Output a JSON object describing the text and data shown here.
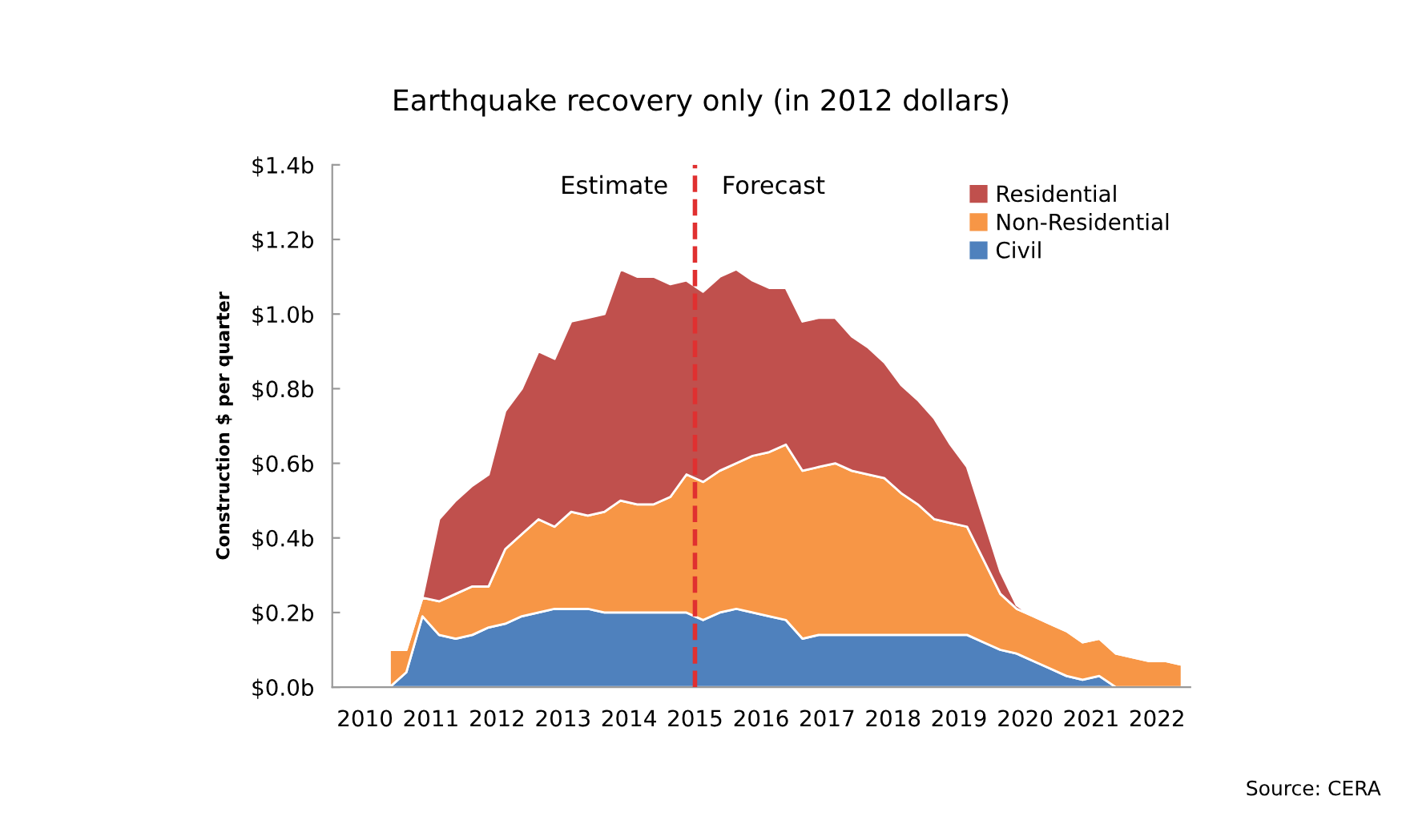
{
  "chart_data": {
    "type": "area",
    "stacked": true,
    "title": "Earthquake recovery only (in 2012 dollars)",
    "ylabel": "Construction $ per quarter",
    "x": [
      "2010-11-15",
      "2011-02-15",
      "2011-05-15",
      "2011-08-15",
      "2011-11-15",
      "2012-02-15",
      "2012-05-15",
      "2012-08-15",
      "2012-11-15",
      "2013-02-15",
      "2013-05-15",
      "2013-08-15",
      "2013-11-15",
      "2014-02-15",
      "2014-05-15",
      "2014-08-15",
      "2014-11-15",
      "2015-02-15",
      "2015-05-15",
      "2015-08-15",
      "2015-11-15",
      "2016-02-15",
      "2016-05-15",
      "2016-08-15",
      "2016-11-15",
      "2017-02-15",
      "2017-05-15",
      "2017-08-15",
      "2017-11-15",
      "2018-02-15",
      "2018-05-15",
      "2018-08-15",
      "2018-11-15",
      "2019-02-15",
      "2019-05-15",
      "2019-08-15",
      "2019-11-15",
      "2020-02-15",
      "2020-05-15",
      "2020-08-15",
      "2020-11-15",
      "2021-02-15",
      "2021-05-15",
      "2021-08-15",
      "2021-11-15",
      "2022-02-15",
      "2022-05-15",
      "2022-08-15",
      "2022-11-15"
    ],
    "series": [
      {
        "name": "Civil",
        "color": "#4f81bd",
        "values": [
          0,
          0.04,
          0.19,
          0.14,
          0.13,
          0.14,
          0.16,
          0.17,
          0.19,
          0.2,
          0.21,
          0.21,
          0.21,
          0.2,
          0.2,
          0.2,
          0.2,
          0.2,
          0.2,
          0.18,
          0.2,
          0.21,
          0.2,
          0.19,
          0.18,
          0.13,
          0.14,
          0.14,
          0.14,
          0.14,
          0.14,
          0.14,
          0.14,
          0.14,
          0.14,
          0.14,
          0.12,
          0.1,
          0.09,
          0.07,
          0.05,
          0.03,
          0.02,
          0.03,
          0,
          0,
          0,
          0,
          0
        ]
      },
      {
        "name": "Non-Residential",
        "color": "#f79646",
        "values": [
          0.1,
          0.06,
          0.05,
          0.09,
          0.12,
          0.13,
          0.11,
          0.2,
          0.22,
          0.25,
          0.22,
          0.26,
          0.25,
          0.27,
          0.3,
          0.29,
          0.29,
          0.31,
          0.37,
          0.37,
          0.38,
          0.39,
          0.42,
          0.44,
          0.47,
          0.45,
          0.45,
          0.46,
          0.44,
          0.43,
          0.42,
          0.38,
          0.35,
          0.31,
          0.3,
          0.29,
          0.22,
          0.15,
          0.12,
          0.12,
          0.12,
          0.12,
          0.1,
          0.1,
          0.09,
          0.08,
          0.07,
          0.07,
          0.06
        ]
      },
      {
        "name": "Residential",
        "color": "#c0504d",
        "values": [
          0,
          0,
          0,
          0.22,
          0.25,
          0.27,
          0.3,
          0.37,
          0.39,
          0.45,
          0.45,
          0.51,
          0.53,
          0.53,
          0.62,
          0.61,
          0.61,
          0.57,
          0.52,
          0.51,
          0.52,
          0.52,
          0.47,
          0.44,
          0.42,
          0.4,
          0.4,
          0.39,
          0.36,
          0.34,
          0.31,
          0.29,
          0.28,
          0.27,
          0.21,
          0.16,
          0.11,
          0.06,
          0.01,
          0,
          0,
          0,
          0,
          0,
          0,
          0,
          0,
          0,
          0
        ]
      }
    ],
    "xlim": [
      "2010-01-01",
      "2023-01-01"
    ],
    "xticks": [
      {
        "value": "2010-07-01",
        "label": "2010"
      },
      {
        "value": "2011-07-01",
        "label": "2011"
      },
      {
        "value": "2012-07-01",
        "label": "2012"
      },
      {
        "value": "2013-07-01",
        "label": "2013"
      },
      {
        "value": "2014-07-01",
        "label": "2014"
      },
      {
        "value": "2015-07-01",
        "label": "2015"
      },
      {
        "value": "2016-07-01",
        "label": "2016"
      },
      {
        "value": "2017-07-01",
        "label": "2017"
      },
      {
        "value": "2018-07-01",
        "label": "2018"
      },
      {
        "value": "2019-07-01",
        "label": "2019"
      },
      {
        "value": "2020-07-01",
        "label": "2020"
      },
      {
        "value": "2021-07-01",
        "label": "2021"
      },
      {
        "value": "2022-07-01",
        "label": "2022"
      }
    ],
    "ylim": [
      0,
      1.4
    ],
    "yticks": [
      {
        "value": 0,
        "label": "$0.0b"
      },
      {
        "value": 0.2,
        "label": "$0.2b"
      },
      {
        "value": 0.4,
        "label": "$0.4b"
      },
      {
        "value": 0.6,
        "label": "$0.6b"
      },
      {
        "value": 0.8,
        "label": "$0.8b"
      },
      {
        "value": 1.0,
        "label": "$1.0b"
      },
      {
        "value": 1.2,
        "label": "$1.2b"
      },
      {
        "value": 1.4,
        "label": "$1.4b"
      }
    ],
    "ref_lines": [
      {
        "axis": "x",
        "value": "2015-07-01",
        "color": "#e03030",
        "line_style": "dashed"
      }
    ],
    "annotations": [
      "Estimate",
      "Forecast",
      "Source: CERA"
    ],
    "legend": "top right",
    "grid": false
  }
}
